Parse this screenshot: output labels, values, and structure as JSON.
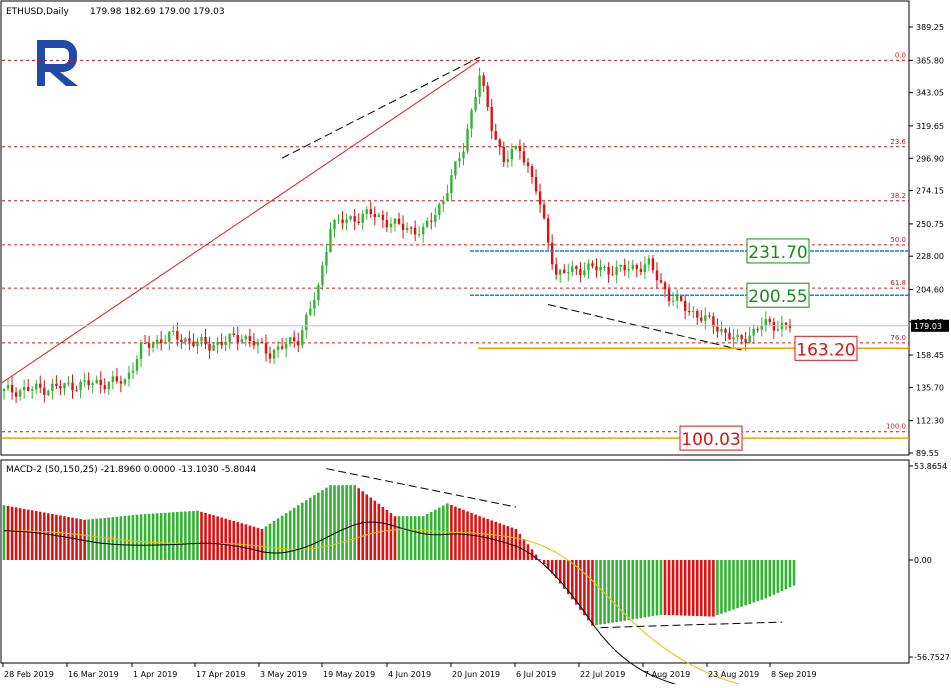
{
  "header": {
    "symbol": "ETHUSD,Daily",
    "ohlc": "179.98 182.69 179.00 179.03"
  },
  "macd_header": "MACD-2 (50,150,25) -21.8960 0.0000 -13.1030 -5.8044",
  "colors": {
    "bull": "#32b432",
    "bear": "#e01010",
    "fib_line": "#d01818",
    "level_cyan": "#0a8fc0",
    "level_orange": "#f0a000",
    "macd_signal": "#e8c000",
    "macd_main": "#000000",
    "logo": "#1f4aa8"
  },
  "chart_data": [
    {
      "type": "candlestick",
      "title": "ETHUSD,Daily",
      "ylim": [
        89.55,
        412.0
      ],
      "y_ticks": [
        "389.25",
        "365.80",
        "343.05",
        "319.65",
        "296.90",
        "274.15",
        "250.75",
        "228.00",
        "204.60",
        "181.85",
        "158.45",
        "135.70",
        "112.30",
        "89.55"
      ],
      "x_ticks": [
        "28 Feb 2019",
        "16 Mar 2019",
        "1 Apr 2019",
        "17 Apr 2019",
        "3 May 2019",
        "19 May 2019",
        "4 Jun 2019",
        "20 Jun 2019",
        "6 Jul 2019",
        "22 Jul 2019",
        "7 Aug 2019",
        "23 Aug 2019",
        "8 Sep 2019"
      ],
      "current_price": "179.03",
      "close_path": [
        {
          "date": "2019-02-28",
          "close": 133
        },
        {
          "date": "2019-03-10",
          "close": 135
        },
        {
          "date": "2019-03-20",
          "close": 138
        },
        {
          "date": "2019-03-30",
          "close": 140
        },
        {
          "date": "2019-04-03",
          "close": 163
        },
        {
          "date": "2019-04-10",
          "close": 172
        },
        {
          "date": "2019-04-20",
          "close": 165
        },
        {
          "date": "2019-04-28",
          "close": 172
        },
        {
          "date": "2019-05-05",
          "close": 160
        },
        {
          "date": "2019-05-12",
          "close": 170
        },
        {
          "date": "2019-05-17",
          "close": 205
        },
        {
          "date": "2019-05-20",
          "close": 250
        },
        {
          "date": "2019-05-30",
          "close": 258
        },
        {
          "date": "2019-06-05",
          "close": 250
        },
        {
          "date": "2019-06-12",
          "close": 245
        },
        {
          "date": "2019-06-17",
          "close": 268
        },
        {
          "date": "2019-06-22",
          "close": 305
        },
        {
          "date": "2019-06-26",
          "close": 355
        },
        {
          "date": "2019-06-29",
          "close": 320
        },
        {
          "date": "2019-07-02",
          "close": 295
        },
        {
          "date": "2019-07-06",
          "close": 305
        },
        {
          "date": "2019-07-10",
          "close": 275
        },
        {
          "date": "2019-07-15",
          "close": 215
        },
        {
          "date": "2019-07-22",
          "close": 220
        },
        {
          "date": "2019-07-30",
          "close": 218
        },
        {
          "date": "2019-08-07",
          "close": 222
        },
        {
          "date": "2019-08-12",
          "close": 200
        },
        {
          "date": "2019-08-17",
          "close": 190
        },
        {
          "date": "2019-08-23",
          "close": 180
        },
        {
          "date": "2019-08-29",
          "close": 168
        },
        {
          "date": "2019-09-01",
          "close": 173
        },
        {
          "date": "2019-09-04",
          "close": 180
        },
        {
          "date": "2019-09-11",
          "close": 179
        }
      ],
      "fibonacci": [
        {
          "label": "0.0",
          "price": 365.8
        },
        {
          "label": "23.6",
          "price": 305.0
        },
        {
          "label": "38.2",
          "price": 267.0
        },
        {
          "label": "50.0",
          "price": 236.0
        },
        {
          "label": "61.8",
          "price": 205.5
        },
        {
          "label": "76.0",
          "price": 167.0
        },
        {
          "label": "100.0",
          "price": 104.5
        }
      ],
      "price_labels": [
        {
          "text": "231.70",
          "price": 231.7,
          "color": "green"
        },
        {
          "text": "200.55",
          "price": 200.55,
          "color": "green"
        },
        {
          "text": "163.20",
          "price": 163.2,
          "color": "red"
        },
        {
          "text": "100.03",
          "price": 100.03,
          "color": "red"
        }
      ]
    },
    {
      "type": "bar",
      "title": "MACD-2 (50,150,25)",
      "y_ticks": [
        "53.8654",
        "0.00",
        "-56.7527"
      ],
      "ylim": [
        -56.7527,
        53.8654
      ],
      "histogram_path": [
        {
          "date": "2019-02-28",
          "value": 30
        },
        {
          "date": "2019-03-20",
          "value": 22
        },
        {
          "date": "2019-04-03",
          "value": 25
        },
        {
          "date": "2019-04-17",
          "value": 27
        },
        {
          "date": "2019-05-03",
          "value": 17
        },
        {
          "date": "2019-05-12",
          "value": 30
        },
        {
          "date": "2019-05-20",
          "value": 41
        },
        {
          "date": "2019-05-26",
          "value": 41
        },
        {
          "date": "2019-06-05",
          "value": 24
        },
        {
          "date": "2019-06-12",
          "value": 24
        },
        {
          "date": "2019-06-18",
          "value": 31
        },
        {
          "date": "2019-06-26",
          "value": 24
        },
        {
          "date": "2019-07-05",
          "value": 17
        },
        {
          "date": "2019-07-10",
          "value": 3
        },
        {
          "date": "2019-07-15",
          "value": -10
        },
        {
          "date": "2019-07-24",
          "value": -36
        },
        {
          "date": "2019-07-30",
          "value": -34
        },
        {
          "date": "2019-08-10",
          "value": -30
        },
        {
          "date": "2019-08-23",
          "value": -31
        },
        {
          "date": "2019-09-05",
          "value": -21
        },
        {
          "date": "2019-09-12",
          "value": -14
        }
      ]
    }
  ]
}
